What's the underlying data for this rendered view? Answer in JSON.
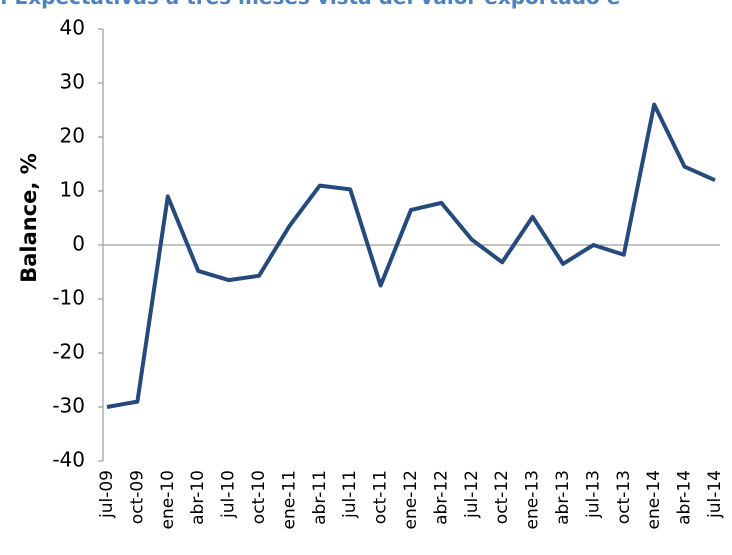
{
  "chart_data": {
    "type": "line",
    "title": ". Expectativas a tres meses vista del valor exportado e",
    "y_label": "Balance, %",
    "categories": [
      "jul-09",
      "oct-09",
      "ene-10",
      "abr-10",
      "jul-10",
      "oct-10",
      "ene-11",
      "abr-11",
      "jul-11",
      "oct-11",
      "ene-12",
      "abr-12",
      "jul-12",
      "oct-12",
      "ene-13",
      "abr-13",
      "jul-13",
      "oct-13",
      "ene-14",
      "abr-14",
      "jul-14"
    ],
    "series": [
      {
        "name": "Balance",
        "color": "#254a7c",
        "values": [
          -30,
          -29,
          9,
          -4.8,
          -6.5,
          -5.7,
          3.5,
          11,
          10.3,
          -7.5,
          6.5,
          7.8,
          1,
          -3.2,
          5.2,
          -3.5,
          0,
          -1.8,
          26,
          14.5,
          12
        ]
      }
    ],
    "ylim": [
      -40,
      40
    ],
    "yticks": [
      -40,
      -30,
      -20,
      -10,
      0,
      10,
      20,
      30,
      40
    ]
  }
}
